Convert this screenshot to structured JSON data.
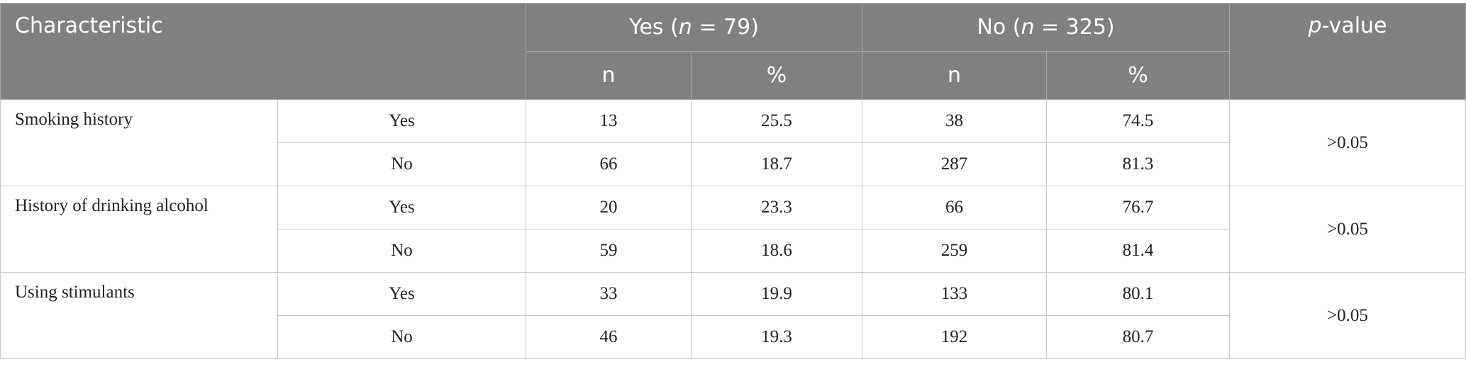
{
  "header": {
    "characteristic": "Characteristic",
    "groups": [
      {
        "prefix": "Yes (",
        "italic": "n",
        "suffix": " = 79)"
      },
      {
        "prefix": "No (",
        "italic": "n",
        "suffix": " = 325)"
      }
    ],
    "p_value": {
      "italic": "p",
      "suffix": "-value"
    },
    "sub": [
      "n",
      "%",
      "n",
      "%"
    ]
  },
  "table": {
    "rows": [
      {
        "characteristic": "Smoking history",
        "p_value": ">0.05",
        "levels": [
          {
            "label": "Yes",
            "cells": [
              13,
              25.5,
              38,
              74.5
            ]
          },
          {
            "label": "No",
            "cells": [
              66,
              18.7,
              287,
              81.3
            ]
          }
        ]
      },
      {
        "characteristic": "History of drinking alcohol",
        "p_value": ">0.05",
        "levels": [
          {
            "label": "Yes",
            "cells": [
              20,
              23.3,
              66,
              76.7
            ]
          },
          {
            "label": "No",
            "cells": [
              59,
              18.6,
              259,
              81.4
            ]
          }
        ]
      },
      {
        "characteristic": "Using stimulants",
        "p_value": ">0.05",
        "levels": [
          {
            "label": "Yes",
            "cells": [
              33,
              19.9,
              133,
              80.1
            ]
          },
          {
            "label": "No",
            "cells": [
              46,
              19.3,
              192,
              80.7
            ]
          }
        ]
      }
    ]
  }
}
